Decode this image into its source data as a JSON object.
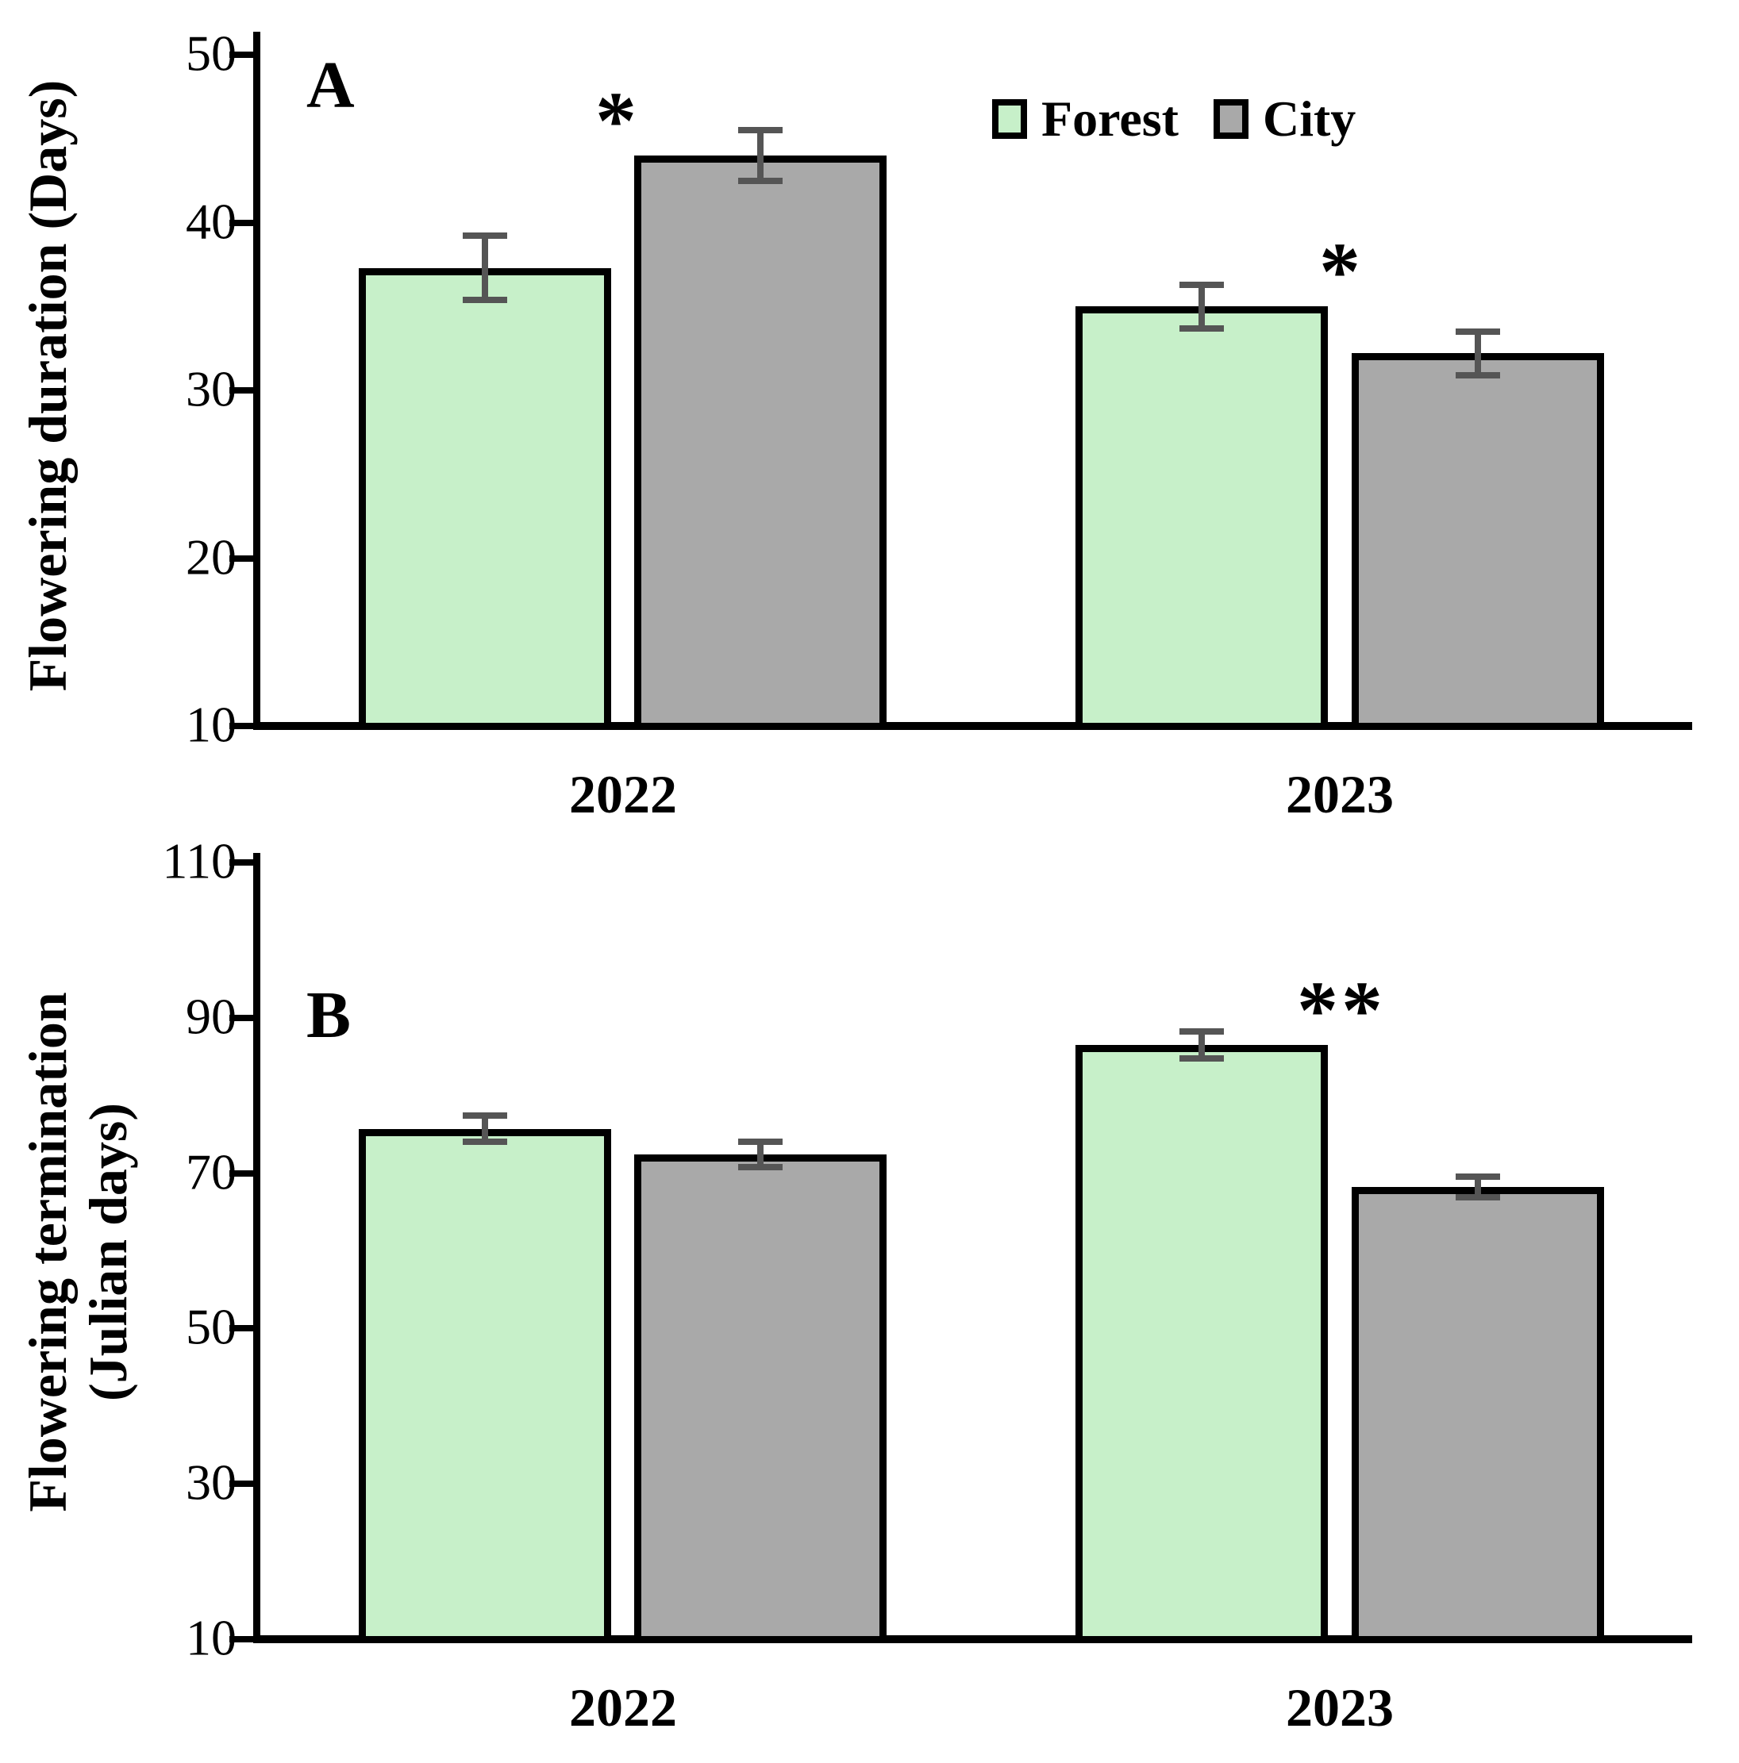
{
  "figure": {
    "background": "#ffffff",
    "legend": {
      "position": "top-right-of-panel-A",
      "items": [
        {
          "label": "Forest",
          "color": "#C7F0C9"
        },
        {
          "label": "City",
          "color": "#A9A9A9"
        }
      ]
    },
    "colors": {
      "bar_border": "#000000",
      "error_bar": "#555555",
      "axis": "#000000",
      "text": "#000000"
    }
  },
  "chart_data": [
    {
      "type": "bar",
      "panel": "A",
      "title": "",
      "xlabel": "",
      "ylabel": "Flowering duration (Days)",
      "ylabel_lines": [
        "Flowering duration (Days)"
      ],
      "categories": [
        "2022",
        "2023"
      ],
      "series": [
        {
          "name": "Forest",
          "values": [
            37.3,
            35.0
          ],
          "errors": [
            1.9,
            1.3
          ]
        },
        {
          "name": "City",
          "values": [
            44.0,
            32.2
          ],
          "errors": [
            1.5,
            1.3
          ]
        }
      ],
      "ylim": [
        10,
        50
      ],
      "yticks": [
        10,
        20,
        30,
        40,
        50
      ],
      "grid": false,
      "annotations": [
        {
          "text": "*",
          "group": "2022"
        },
        {
          "text": "*",
          "group": "2023"
        }
      ]
    },
    {
      "type": "bar",
      "panel": "B",
      "title": "",
      "xlabel": "",
      "ylabel": "Flowering termination (Julian days)",
      "ylabel_lines": [
        "Flowering termination",
        "(Julian days)"
      ],
      "categories": [
        "2022",
        "2023"
      ],
      "series": [
        {
          "name": "Forest",
          "values": [
            75.7,
            86.5
          ],
          "errors": [
            1.7,
            1.7
          ]
        },
        {
          "name": "City",
          "values": [
            72.4,
            68.2
          ],
          "errors": [
            1.6,
            1.3
          ]
        }
      ],
      "ylim": [
        10,
        110
      ],
      "yticks": [
        10,
        30,
        50,
        70,
        90,
        110
      ],
      "grid": false,
      "annotations": [
        {
          "text": "**",
          "group": "2023"
        }
      ]
    }
  ]
}
